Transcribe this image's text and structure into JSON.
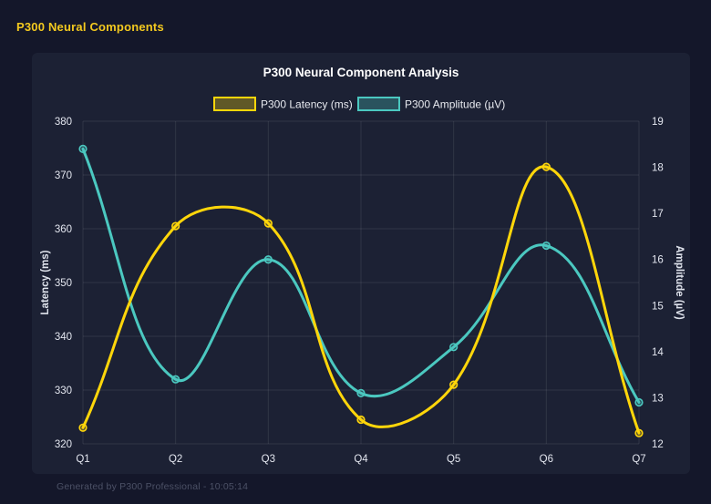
{
  "page": {
    "header_title": "P300 Neural Components",
    "footer": "Generated by P300 Professional - 10:05:14",
    "colors": {
      "page_bg": "#14172a",
      "panel_bg": "#1c2134",
      "header_yellow": "#F3C91F",
      "chart_title": "#ffffff",
      "tick_text": "#e3e6ef",
      "axis_title_text": "#dfe3ec",
      "grid": "rgba(255,255,255,0.09)",
      "footer_text": "#4c5166"
    }
  },
  "chart_data": {
    "type": "line",
    "title": "P300 Neural Component Analysis",
    "categories": [
      "Q1",
      "Q2",
      "Q3",
      "Q4",
      "Q5",
      "Q6",
      "Q7"
    ],
    "series": [
      {
        "name": "P300 Latency (ms)",
        "axis": "left",
        "color": "#FFD60A",
        "fill": "rgba(255,214,10,0.30)",
        "values": [
          323,
          360.5,
          361,
          324.5,
          331,
          371.5,
          322
        ]
      },
      {
        "name": "P300 Amplitude (µV)",
        "axis": "right",
        "color": "#4BC8C0",
        "fill": "rgba(75,200,192,0.30)",
        "values": [
          18.4,
          13.4,
          16.0,
          13.1,
          14.1,
          16.3,
          12.9
        ]
      }
    ],
    "left_axis": {
      "label": "Latency (ms)",
      "min": 320,
      "max": 380,
      "ticks": [
        380,
        370,
        360,
        350,
        340,
        330,
        320
      ]
    },
    "right_axis": {
      "label": "Amplitude (µV)",
      "min": 12,
      "max": 19,
      "ticks": [
        19,
        18,
        17,
        16,
        15,
        14,
        13,
        12
      ]
    },
    "legend_position": "top",
    "grid": true,
    "line_tension": 0.4
  }
}
